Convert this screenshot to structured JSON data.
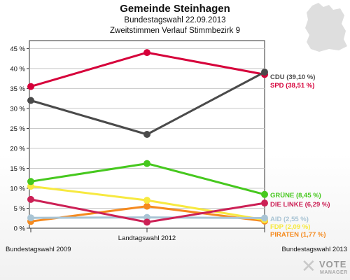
{
  "header": {
    "title": "Gemeinde Steinhagen",
    "subtitle": "Bundestagswahl 22.09.2013",
    "subtitle2": "Zweitstimmen Verlauf Stimmbezirk 9"
  },
  "logo": {
    "word": "VOTE",
    "sub": "MANAGER"
  },
  "chart_data": {
    "type": "line",
    "title": "Gemeinde Steinhagen",
    "subtitle": "Bundestagswahl 22.09.2013 — Zweitstimmen Verlauf Stimmbezirk 9",
    "categories": [
      "Bundestagswahl 2009",
      "Landtagswahl 2012",
      "Bundestagswahl 2013"
    ],
    "ylim": [
      0,
      47
    ],
    "yticks": [
      0,
      5,
      10,
      15,
      20,
      25,
      30,
      35,
      40,
      45
    ],
    "ytick_labels": [
      "0 %",
      "5 %",
      "10 %",
      "15 %",
      "20 %",
      "25 %",
      "30 %",
      "35 %",
      "40 %",
      "45 %"
    ],
    "grid": true,
    "series": [
      {
        "name": "CDU",
        "label": "CDU (39,10 %)",
        "color": "#4a4a4a",
        "values": [
          32.0,
          23.5,
          39.1
        ]
      },
      {
        "name": "SPD",
        "label": "SPD (38,51 %)",
        "color": "#d6003a",
        "values": [
          35.5,
          44.0,
          38.51
        ]
      },
      {
        "name": "GRÜNE",
        "label": "GRÜNE (8,45 %)",
        "color": "#46c81e",
        "values": [
          11.7,
          16.2,
          8.45
        ]
      },
      {
        "name": "DIE LINKE",
        "label": "DIE LINKE (6,29 %)",
        "color": "#cc2055",
        "values": [
          7.2,
          1.5,
          6.29
        ]
      },
      {
        "name": "AID",
        "label": "AID (2,55 %)",
        "color": "#a9c4d4",
        "values": [
          2.6,
          2.7,
          2.55
        ]
      },
      {
        "name": "FDP",
        "label": "FDP (2,09 %)",
        "color": "#f7e940",
        "values": [
          10.5,
          7.0,
          2.09
        ]
      },
      {
        "name": "PIRATEN",
        "label": "PIRATEN (1,77 %)",
        "color": "#f58a1f",
        "values": [
          1.7,
          5.5,
          1.77
        ]
      }
    ]
  }
}
